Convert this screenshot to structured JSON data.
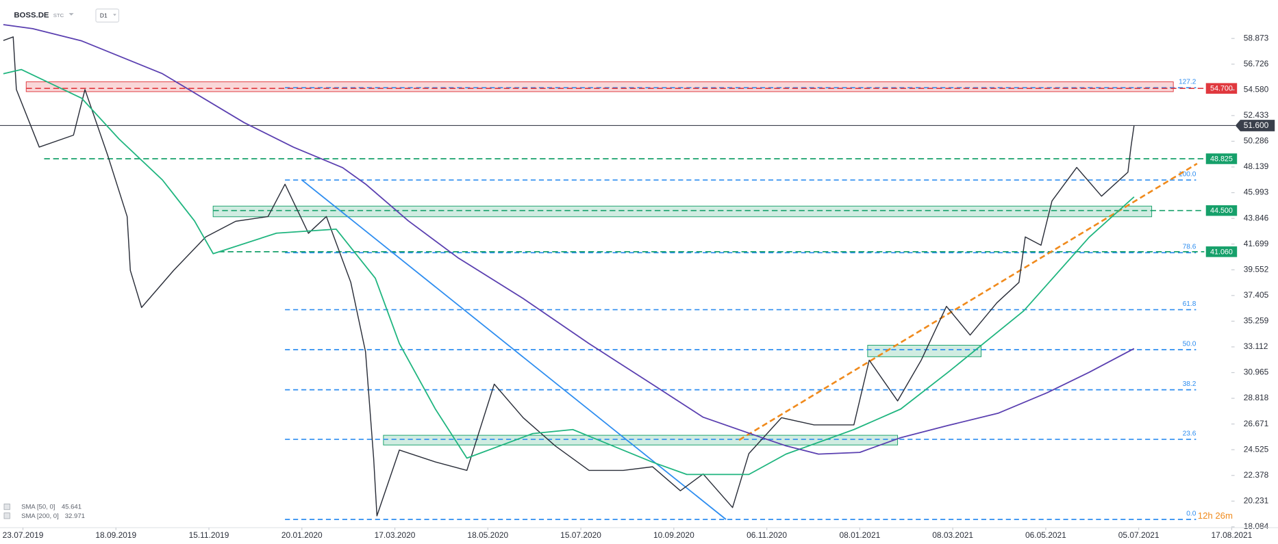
{
  "header": {
    "symbol": "BOSS.DE",
    "account": "STC",
    "timeframe": "D1"
  },
  "countdown": "12h 26m",
  "chart_data": {
    "type": "line",
    "ylim": [
      18.016,
      62.084
    ],
    "yticks": [
      58.873,
      56.726,
      {
        "value": 54.58,
        "label": "54.580"
      },
      52.433,
      50.286,
      48.139,
      45.993,
      43.846,
      41.699,
      39.552,
      37.405,
      35.259,
      33.112,
      30.965,
      28.818,
      26.671,
      24.525,
      22.378,
      20.231,
      18.084
    ],
    "xticks": [
      "23.07.2019",
      "18.09.2019",
      "15.11.2019",
      "20.01.2020",
      "17.03.2020",
      "18.05.2020",
      "15.07.2020",
      "10.09.2020",
      "06.11.2020",
      "08.01.2021",
      "08.03.2021",
      "06.05.2021",
      "05.07.2021",
      "17.08.2021"
    ],
    "series": [
      {
        "color": "#2a2e39",
        "x": [
          "11.07.2019",
          "17.07.2019",
          "19.07.2019",
          "02.08.2019",
          "23.08.2019",
          "30.08.2019",
          "13.09.2019",
          "25.09.2019",
          "27.09.2019",
          "04.10.2019",
          "24.10.2019",
          "13.11.2019",
          "04.12.2019",
          "27.12.2019",
          "08.01.2020",
          "24.01.2020",
          "04.02.2020",
          "19.02.2020",
          "28.02.2020",
          "04.03.2020",
          "06.03.2020",
          "20.03.2020",
          "13.04.2020",
          "04.05.2020",
          "22.05.2020",
          "09.06.2020",
          "29.06.2020",
          "20.07.2020",
          "10.08.2020",
          "28.08.2020",
          "14.09.2020",
          "28.09.2020",
          "16.10.2020",
          "26.10.2020",
          "16.11.2020",
          "08.12.2020",
          "04.01.2021",
          "14.01.2021",
          "01.02.2021",
          "16.02.2021",
          "04.03.2021",
          "19.03.2021",
          "05.04.2021",
          "19.04.2021",
          "23.04.2021",
          "03.05.2021",
          "10.05.2021",
          "26.05.2021",
          "11.06.2021",
          "28.06.2021",
          "30.06.2021",
          "02.07.2021"
        ],
        "values": [
          58.7,
          59.0,
          54.6,
          49.8,
          50.8,
          54.6,
          49.1,
          44.0,
          39.5,
          36.4,
          39.5,
          42.3,
          43.6,
          44.0,
          46.7,
          42.6,
          44.0,
          38.5,
          32.7,
          23.8,
          19.0,
          24.5,
          23.5,
          22.8,
          30.0,
          27.2,
          24.85,
          22.8,
          22.8,
          23.1,
          21.1,
          22.5,
          19.7,
          24.2,
          27.2,
          26.6,
          26.6,
          32.0,
          28.6,
          32.0,
          36.5,
          34.1,
          36.8,
          38.5,
          42.3,
          41.6,
          45.3,
          48.1,
          45.7,
          47.7,
          49.8,
          51.6
        ]
      },
      {
        "name": "SMA [50, 0]",
        "last": 45.641,
        "color": "#1fb57f",
        "x": [
          "11.07.2019",
          "22.07.2019",
          "28.08.2019",
          "20.09.2019",
          "17.10.2019",
          "06.11.2019",
          "18.11.2019",
          "02.01.2020",
          "10.02.2020",
          "05.03.2020",
          "20.03.2020",
          "13.04.2020",
          "04.05.2020",
          "15.06.2020",
          "10.07.2020",
          "28.08.2020",
          "18.09.2020",
          "26.10.2020",
          "19.11.2020",
          "04.01.2021",
          "03.02.2021",
          "05.03.2021",
          "22.04.2021",
          "03.06.2021",
          "02.07.2021"
        ],
        "values": [
          55.93,
          56.28,
          53.88,
          50.47,
          47.05,
          43.64,
          40.9,
          42.61,
          42.95,
          38.85,
          33.39,
          27.92,
          23.82,
          25.87,
          26.21,
          23.48,
          22.46,
          22.46,
          24.16,
          26.21,
          27.92,
          30.99,
          36.12,
          42.27,
          45.64
        ]
      },
      {
        "name": "SMA [200, 0]",
        "last": 32.971,
        "color": "#5a3fb0",
        "x": [
          "11.07.2019",
          "29.07.2019",
          "28.08.2019",
          "17.10.2019",
          "10.12.2019",
          "14.01.2020",
          "14.02.2020",
          "28.02.2020",
          "26.03.2020",
          "28.04.2020",
          "09.06.2020",
          "20.07.2020",
          "28.08.2020",
          "28.09.2020",
          "03.11.2020",
          "19.11.2020",
          "11.12.2020",
          "08.01.2021",
          "03.02.2021",
          "05.03.2021",
          "06.04.2021",
          "07.05.2021",
          "03.06.2021",
          "02.07.2021"
        ],
        "values": [
          60.03,
          59.69,
          58.67,
          55.93,
          51.84,
          49.79,
          48.08,
          46.71,
          43.64,
          40.56,
          37.15,
          33.39,
          29.97,
          27.24,
          25.53,
          24.85,
          24.16,
          24.3,
          25.53,
          26.55,
          27.58,
          29.29,
          30.99,
          32.97
        ]
      }
    ],
    "last_price": {
      "value": 51.6,
      "label": "51.600",
      "color": "#3a3f4b"
    },
    "levels": [
      {
        "value": 54.7,
        "label": "54.700",
        "color": "#e0383e",
        "from": "25.07.2019"
      },
      {
        "value": 48.825,
        "color": "#16a06a",
        "from": "05.08.2019"
      },
      {
        "value": 44.5,
        "label": "44.500",
        "color": "#16a06a",
        "from": "18.11.2019"
      },
      {
        "value": 41.06,
        "label": "41.060",
        "color": "#16a06a",
        "from": "22.11.2019"
      }
    ],
    "fib": [
      {
        "label": "127.2",
        "value": 54.76
      },
      {
        "label": "100.0",
        "value": 47.05
      },
      {
        "label": "78.6",
        "value": 40.98
      },
      {
        "label": "61.8",
        "value": 36.22
      },
      {
        "label": "50.0",
        "value": 32.88
      },
      {
        "label": "38.2",
        "value": 29.53
      },
      {
        "label": "23.6",
        "value": 25.39
      },
      {
        "label": "0.0",
        "value": 18.7
      }
    ],
    "fib_from": "08.01.2020",
    "fib_color": "#2d8df0",
    "zones": [
      {
        "from": "25.07.2019",
        "to": "21.07.2021",
        "low": 54.43,
        "high": 55.25,
        "color": "#e0383e"
      },
      {
        "from": "18.11.2019",
        "to": "11.07.2021",
        "low": 43.98,
        "high": 44.87,
        "color": "#16a06a"
      },
      {
        "from": "10.03.2020",
        "to": "01.02.2021",
        "low": 24.92,
        "high": 25.73,
        "color": "#16a06a"
      },
      {
        "from": "13.01.2021",
        "to": "26.03.2021",
        "low": 32.29,
        "high": 33.25,
        "color": "#16a06a"
      }
    ],
    "trendlines": [
      {
        "from": "20.01.2020",
        "to": "12.10.2020",
        "start": 47.05,
        "end": 18.7,
        "color": "#2d8df0",
        "dashed": false
      },
      {
        "from": "20.10.2020",
        "to": "01.08.2021",
        "start": 25.33,
        "end": 48.42,
        "color": "#f08a1c",
        "dashed": true
      }
    ]
  }
}
